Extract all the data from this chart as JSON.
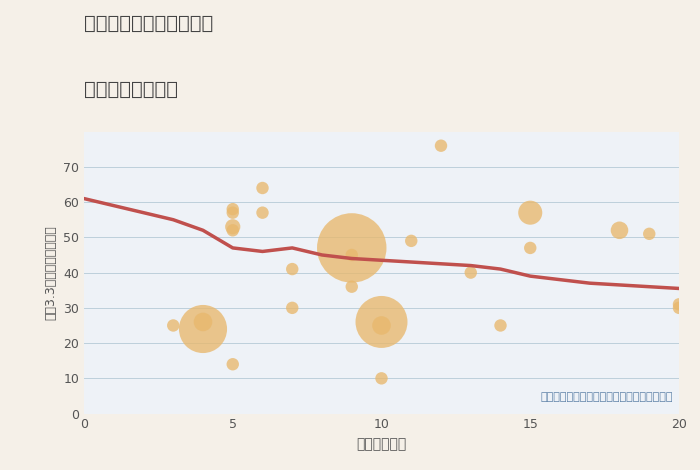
{
  "title_line1": "大阪府東大阪市長田東の",
  "title_line2": "駅距離別土地価格",
  "xlabel": "駅距離（分）",
  "ylabel": "坪（3.3㎡）単価（万円）",
  "annotation": "円の大きさは、取引のあった物件面積を示す",
  "background_color": "#f5f0e8",
  "plot_bg_color": "#eef2f7",
  "xlim": [
    0,
    20
  ],
  "ylim": [
    0,
    80
  ],
  "xticks": [
    0,
    5,
    10,
    15,
    20
  ],
  "yticks": [
    0,
    10,
    20,
    30,
    40,
    50,
    60,
    70
  ],
  "scatter_x": [
    3,
    4,
    4,
    5,
    5,
    5,
    5,
    5,
    6,
    6,
    7,
    7,
    9,
    9,
    9,
    10,
    10,
    10,
    11,
    12,
    13,
    14,
    15,
    15,
    18,
    19,
    20,
    20
  ],
  "scatter_y": [
    25,
    24,
    26,
    58,
    57,
    53,
    52,
    14,
    64,
    57,
    41,
    30,
    47,
    45,
    36,
    26,
    25,
    10,
    49,
    76,
    40,
    25,
    57,
    47,
    52,
    51,
    31,
    30
  ],
  "scatter_s": [
    80,
    1200,
    180,
    80,
    80,
    120,
    80,
    80,
    80,
    80,
    80,
    80,
    2500,
    80,
    80,
    1400,
    180,
    80,
    80,
    80,
    80,
    80,
    300,
    80,
    160,
    80,
    80,
    80
  ],
  "scatter_color": "#e8b86d",
  "scatter_alpha": 0.78,
  "trend_x": [
    0,
    1,
    2,
    3,
    4,
    5,
    6,
    7,
    8,
    9,
    10,
    11,
    12,
    13,
    14,
    15,
    16,
    17,
    18,
    19,
    20
  ],
  "trend_y": [
    61,
    59,
    57,
    55,
    52,
    47,
    46,
    47,
    45,
    44,
    43.5,
    43,
    42.5,
    42,
    41,
    39,
    38,
    37,
    36.5,
    36,
    35.5
  ],
  "trend_color": "#c0504d",
  "trend_lw": 2.5,
  "grid_color": "#b8ccd8",
  "grid_alpha": 0.9,
  "title_color": "#444444",
  "annotation_color": "#5b7fa6",
  "tick_color": "#555555"
}
